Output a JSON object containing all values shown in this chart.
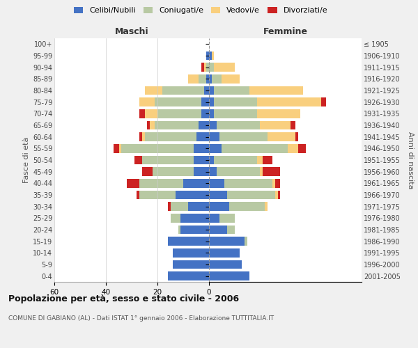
{
  "age_groups": [
    "0-4",
    "5-9",
    "10-14",
    "15-19",
    "20-24",
    "25-29",
    "30-34",
    "35-39",
    "40-44",
    "45-49",
    "50-54",
    "55-59",
    "60-64",
    "65-69",
    "70-74",
    "75-79",
    "80-84",
    "85-89",
    "90-94",
    "95-99",
    "100+"
  ],
  "birth_years": [
    "2001-2005",
    "1996-2000",
    "1991-1995",
    "1986-1990",
    "1981-1985",
    "1976-1980",
    "1971-1975",
    "1966-1970",
    "1961-1965",
    "1956-1960",
    "1951-1955",
    "1946-1950",
    "1941-1945",
    "1936-1940",
    "1931-1935",
    "1926-1930",
    "1921-1925",
    "1916-1920",
    "1911-1915",
    "1906-1910",
    "≤ 1905"
  ],
  "colors": {
    "celibi": "#4472C4",
    "coniugati": "#B8C9A3",
    "vedovi": "#F9CF7E",
    "divorziati": "#CC2222"
  },
  "maschi": {
    "celibi": [
      16,
      14,
      14,
      16,
      11,
      11,
      8,
      13,
      10,
      6,
      6,
      6,
      5,
      4,
      3,
      3,
      2,
      1,
      0,
      1,
      0
    ],
    "coniugati": [
      0,
      0,
      0,
      0,
      1,
      4,
      7,
      14,
      17,
      16,
      20,
      28,
      20,
      17,
      17,
      18,
      16,
      3,
      1,
      0,
      0
    ],
    "vedovi": [
      0,
      0,
      0,
      0,
      0,
      0,
      0,
      0,
      0,
      0,
      0,
      1,
      1,
      2,
      5,
      6,
      7,
      4,
      1,
      0,
      0
    ],
    "divorziati": [
      0,
      0,
      0,
      0,
      0,
      0,
      1,
      1,
      5,
      4,
      3,
      2,
      1,
      1,
      2,
      0,
      0,
      0,
      1,
      0,
      0
    ]
  },
  "femmine": {
    "celibi": [
      16,
      13,
      12,
      14,
      7,
      4,
      8,
      7,
      6,
      3,
      2,
      5,
      4,
      3,
      2,
      2,
      2,
      1,
      0,
      1,
      0
    ],
    "coniugati": [
      0,
      0,
      0,
      1,
      3,
      6,
      14,
      19,
      19,
      17,
      17,
      26,
      19,
      17,
      17,
      17,
      14,
      4,
      2,
      0,
      0
    ],
    "vedovi": [
      0,
      0,
      0,
      0,
      0,
      0,
      1,
      1,
      1,
      1,
      2,
      4,
      11,
      12,
      17,
      25,
      21,
      7,
      8,
      1,
      0
    ],
    "divorziati": [
      0,
      0,
      0,
      0,
      0,
      0,
      0,
      1,
      2,
      7,
      4,
      3,
      1,
      2,
      0,
      2,
      0,
      0,
      0,
      0,
      0
    ]
  },
  "xlim": 60,
  "title": "Popolazione per età, sesso e stato civile - 2006",
  "subtitle": "COMUNE DI GABIANO (AL) - Dati ISTAT 1° gennaio 2006 - Elaborazione TUTTITALIA.IT",
  "ylabel_left": "Fasce di età",
  "ylabel_right": "Anni di nascita",
  "xlabel_maschi": "Maschi",
  "xlabel_femmine": "Femmine",
  "legend_labels": [
    "Celibi/Nubili",
    "Coniugati/e",
    "Vedovi/e",
    "Divorziati/e"
  ],
  "background_color": "#f0f0f0",
  "plot_bg_color": "#ffffff",
  "grid_color": "#cccccc"
}
